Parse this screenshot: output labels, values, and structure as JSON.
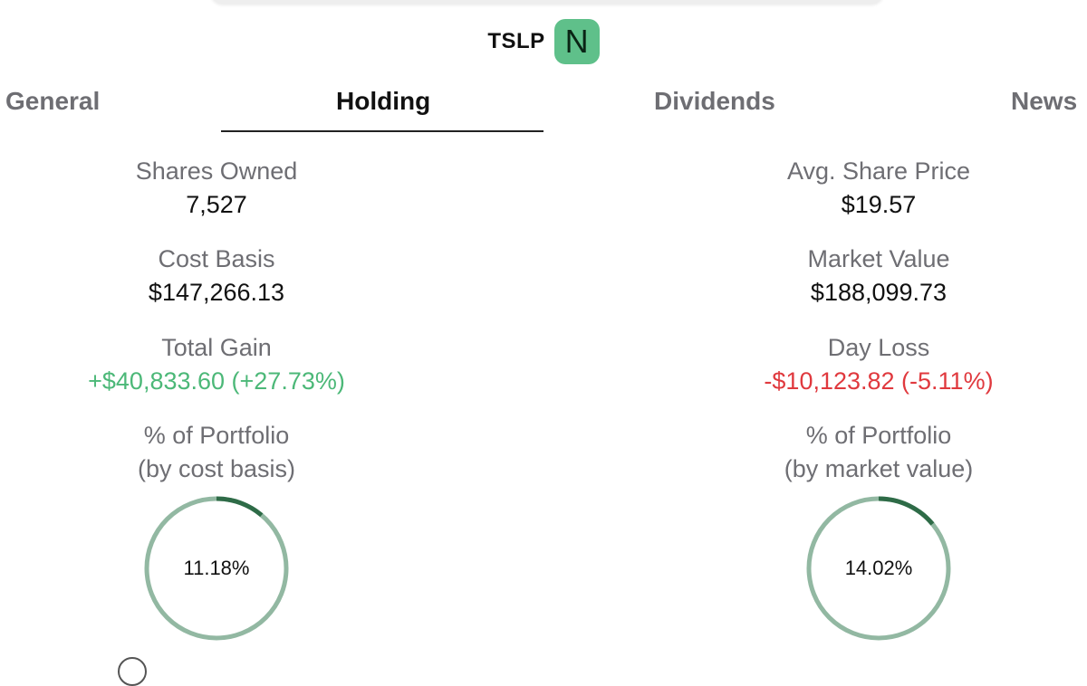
{
  "header": {
    "ticker": "TSLP",
    "badge_letter": "N",
    "badge_color": "#5fc08a"
  },
  "tabs": [
    {
      "label": "General",
      "active": false
    },
    {
      "label": "Holding",
      "active": true
    },
    {
      "label": "Dividends",
      "active": false
    },
    {
      "label": "News",
      "active": false
    }
  ],
  "stats": {
    "shares_owned": {
      "label": "Shares Owned",
      "value": "7,527"
    },
    "avg_share_price": {
      "label": "Avg. Share Price",
      "value": "$19.57"
    },
    "cost_basis": {
      "label": "Cost Basis",
      "value": "$147,266.13"
    },
    "market_value": {
      "label": "Market Value",
      "value": "$188,099.73"
    },
    "total_gain": {
      "label": "Total Gain",
      "value": "+$40,833.60 (+27.73%)"
    },
    "day_loss": {
      "label": "Day Loss",
      "value": "-$10,123.82 (-5.11%)"
    }
  },
  "portfolio": {
    "cost": {
      "label_line1": "% of Portfolio",
      "label_line2": "(by cost basis)",
      "percent_text": "11.18%",
      "fraction": 0.1118
    },
    "market": {
      "label_line1": "% of Portfolio",
      "label_line2": "(by market value)",
      "percent_text": "14.02%",
      "fraction": 0.1402
    }
  },
  "colors": {
    "gain": "#4cb878",
    "loss": "#e0393e",
    "ring_track": "#92b8a2",
    "ring_fill": "#2e6b47"
  }
}
